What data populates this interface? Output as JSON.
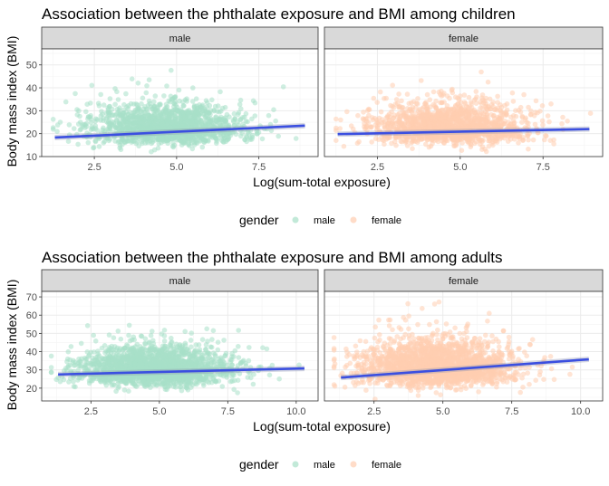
{
  "chart_data": [
    {
      "type": "scatter",
      "title": "Association between the phthalate exposure and BMI among children",
      "xlabel": "Log(sum-total exposure)",
      "ylabel": "Body mass index (BMI)",
      "xlim": [
        0.9,
        9.3
      ],
      "ylim": [
        10,
        57
      ],
      "xticks": [
        2.5,
        5.0,
        7.5
      ],
      "xtick_labels": [
        "2.5",
        "5.0",
        "7.5"
      ],
      "yticks": [
        10,
        20,
        30,
        40,
        50
      ],
      "ytick_labels": [
        "10",
        "20",
        "30",
        "40",
        "50"
      ],
      "grid": true,
      "legend": {
        "title": "gender",
        "position": "bottom",
        "labels": [
          "male",
          "female"
        ]
      },
      "facets": [
        {
          "label": "male",
          "color": "#a8e0c8",
          "n_points": 1500,
          "x_center": 4.7,
          "x_spread": 1.2,
          "y_median": 21,
          "y_spread": 5,
          "regression_line": {
            "x": [
              1.3,
              8.9
            ],
            "y": [
              18.3,
              23.5
            ]
          }
        },
        {
          "label": "female",
          "color": "#ffcdb0",
          "n_points": 1500,
          "x_center": 4.7,
          "x_spread": 1.2,
          "y_median": 21,
          "y_spread": 5,
          "regression_line": {
            "x": [
              1.3,
              8.9
            ],
            "y": [
              19.8,
              22.0
            ]
          }
        }
      ]
    },
    {
      "type": "scatter",
      "title": "Association between the phthalate exposure and BMI among adults",
      "xlabel": "Log(sum-total exposure)",
      "ylabel": "Body mass index (BMI)",
      "xlim": [
        0.7,
        10.8
      ],
      "ylim": [
        13,
        73
      ],
      "xticks": [
        2.5,
        5.0,
        7.5,
        10.0
      ],
      "xtick_labels": [
        "2.5",
        "5.0",
        "7.5",
        "10.0"
      ],
      "yticks": [
        20,
        30,
        40,
        50,
        60,
        70
      ],
      "ytick_labels": [
        "20",
        "30",
        "40",
        "50",
        "60",
        "70"
      ],
      "grid": true,
      "legend": {
        "title": "gender",
        "position": "bottom",
        "labels": [
          "male",
          "female"
        ]
      },
      "facets": [
        {
          "label": "male",
          "color": "#a8e0c8",
          "n_points": 2000,
          "x_center": 4.8,
          "x_spread": 1.4,
          "y_median": 28,
          "y_spread": 6,
          "regression_line": {
            "x": [
              1.3,
              10.3
            ],
            "y": [
              27.5,
              30.8
            ]
          }
        },
        {
          "label": "female",
          "color": "#ffcdb0",
          "n_points": 2000,
          "x_center": 4.8,
          "x_spread": 1.4,
          "y_median": 29,
          "y_spread": 7,
          "regression_line": {
            "x": [
              1.3,
              10.3
            ],
            "y": [
              25.8,
              35.8
            ]
          }
        }
      ]
    }
  ],
  "colors": {
    "regression_line": "#3b4fe0",
    "strip_fill": "#d9d9d9",
    "grid": "#ebebeb"
  }
}
